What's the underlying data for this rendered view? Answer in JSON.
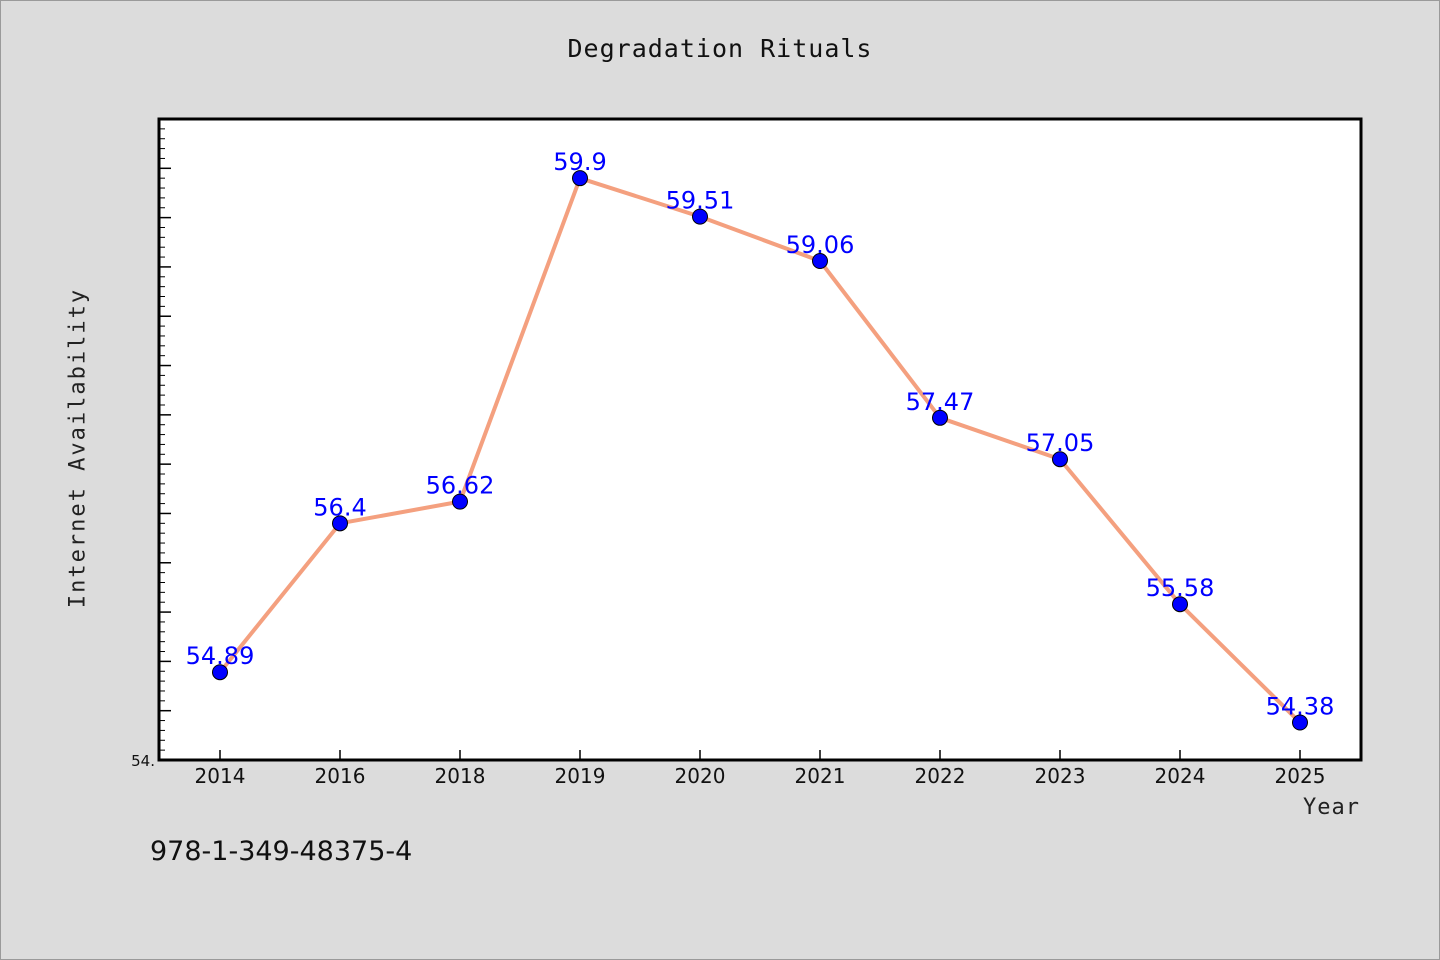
{
  "chart_data": {
    "type": "line",
    "title": "Degradation Rituals",
    "xlabel": "Year",
    "ylabel": "Internet Availability",
    "categories": [
      "2014",
      "2016",
      "2018",
      "2019",
      "2020",
      "2021",
      "2022",
      "2023",
      "2024",
      "2025"
    ],
    "series": [
      {
        "values": [
          54.89,
          56.4,
          56.62,
          59.9,
          59.51,
          59.06,
          57.47,
          57.05,
          55.58,
          54.38
        ],
        "data_labels": [
          "54.89",
          "56.4",
          "56.62",
          "59.9",
          "59.51",
          "59.06",
          "57.47",
          "57.05",
          "55.58",
          "54.38"
        ],
        "line_color": "#f4a07f",
        "marker_color": "#0000ff"
      }
    ],
    "y_tick_labels": [
      "54."
    ],
    "ylim": [
      54.0,
      60.5
    ],
    "grid": false,
    "legend": "none"
  },
  "footer": {
    "isbn": "978-1-349-48375-4"
  }
}
